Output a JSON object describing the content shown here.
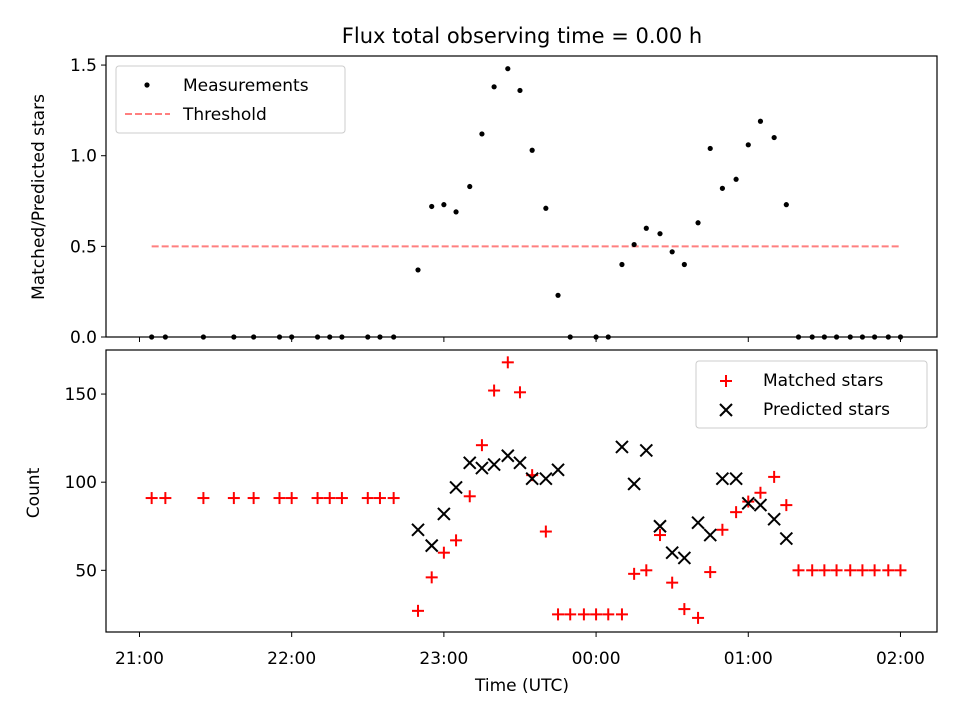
{
  "chart_data": [
    {
      "type": "scatter",
      "title": "Flux total observing time = 0.00 h",
      "xlabel": "",
      "ylabel": "Matched/Predicted stars",
      "xlim": [
        -0.22,
        5.24
      ],
      "ylim": [
        0,
        1.55
      ],
      "yticks": [
        0,
        0.5,
        1.0,
        1.5
      ],
      "ytick_labels": [
        "0.0",
        "0.5",
        "1.0",
        "1.5"
      ],
      "legend_position": "top-left",
      "series": [
        {
          "name": "Measurements",
          "marker": "dot",
          "color": "#000000",
          "x": [
            0.08,
            0.17,
            0.42,
            0.62,
            0.75,
            0.92,
            1.0,
            1.17,
            1.25,
            1.33,
            1.5,
            1.58,
            1.67,
            1.83,
            1.92,
            2.0,
            2.08,
            2.17,
            2.25,
            2.33,
            2.42,
            2.5,
            2.58,
            2.67,
            2.75,
            2.83,
            3.0,
            3.08,
            3.17,
            3.25,
            3.33,
            3.42,
            3.5,
            3.58,
            3.67,
            3.75,
            3.83,
            3.92,
            4.0,
            4.08,
            4.17,
            4.25,
            4.33,
            4.42,
            4.5,
            4.58,
            4.67,
            4.75,
            4.83,
            4.92,
            5.0
          ],
          "y": [
            0,
            0,
            0,
            0,
            0,
            0,
            0,
            0,
            0,
            0,
            0,
            0,
            0,
            0.37,
            0.72,
            0.73,
            0.69,
            0.83,
            1.12,
            1.38,
            1.48,
            1.36,
            1.03,
            0.71,
            0.23,
            0,
            0,
            0,
            0.4,
            0.51,
            0.6,
            0.57,
            0.47,
            0.4,
            0.63,
            1.04,
            0.82,
            0.87,
            1.06,
            1.19,
            1.1,
            0.73,
            0,
            0,
            0,
            0,
            0,
            0,
            0,
            0,
            0
          ]
        },
        {
          "name": "Threshold",
          "line": "dashed",
          "color": "#ff7f7f",
          "x": [
            0.08,
            5.0
          ],
          "y": [
            0.5,
            0.5
          ]
        }
      ]
    },
    {
      "type": "scatter",
      "title": "",
      "xlabel": "Time (UTC)",
      "ylabel": "Count",
      "xlim": [
        -0.22,
        5.24
      ],
      "ylim": [
        15,
        175
      ],
      "yticks": [
        50,
        100,
        150
      ],
      "ytick_labels": [
        "50",
        "100",
        "150"
      ],
      "xticks": [
        0,
        1,
        2,
        3,
        4,
        5
      ],
      "xtick_labels": [
        "21:00",
        "22:00",
        "23:00",
        "00:00",
        "01:00",
        "02:00"
      ],
      "legend_position": "top-right",
      "series": [
        {
          "name": "Matched stars",
          "marker": "plus",
          "color": "#ff0000",
          "x": [
            0.08,
            0.17,
            0.42,
            0.62,
            0.75,
            0.92,
            1.0,
            1.17,
            1.25,
            1.33,
            1.5,
            1.58,
            1.67,
            1.83,
            1.92,
            2.0,
            2.08,
            2.17,
            2.25,
            2.33,
            2.42,
            2.5,
            2.58,
            2.67,
            2.75,
            2.83,
            2.92,
            3.0,
            3.08,
            3.17,
            3.25,
            3.33,
            3.42,
            3.5,
            3.58,
            3.67,
            3.75,
            3.83,
            3.92,
            4.0,
            4.08,
            4.17,
            4.25,
            4.33,
            4.42,
            4.5,
            4.58,
            4.67,
            4.75,
            4.83,
            4.92,
            5.0
          ],
          "y": [
            91,
            91,
            91,
            91,
            91,
            91,
            91,
            91,
            91,
            91,
            91,
            91,
            91,
            27,
            46,
            60,
            67,
            92,
            121,
            152,
            168,
            151,
            104,
            72,
            25,
            25,
            25,
            25,
            25,
            25,
            48,
            50,
            70,
            43,
            28,
            23,
            49,
            73,
            83,
            89,
            94,
            103,
            87,
            50,
            50,
            50,
            50,
            50,
            50,
            50,
            50,
            50
          ]
        },
        {
          "name": "Predicted stars",
          "marker": "x",
          "color": "#000000",
          "x": [
            1.83,
            1.92,
            2.0,
            2.08,
            2.17,
            2.25,
            2.33,
            2.42,
            2.5,
            2.58,
            2.67,
            2.75,
            3.17,
            3.25,
            3.33,
            3.42,
            3.5,
            3.58,
            3.67,
            3.75,
            3.83,
            3.92,
            4.0,
            4.08,
            4.17,
            4.25
          ],
          "y": [
            73,
            64,
            82,
            97,
            111,
            108,
            110,
            115,
            111,
            102,
            102,
            107,
            120,
            99,
            118,
            75,
            60,
            57,
            77,
            70,
            102,
            102,
            88,
            87,
            79,
            68
          ]
        }
      ]
    }
  ]
}
